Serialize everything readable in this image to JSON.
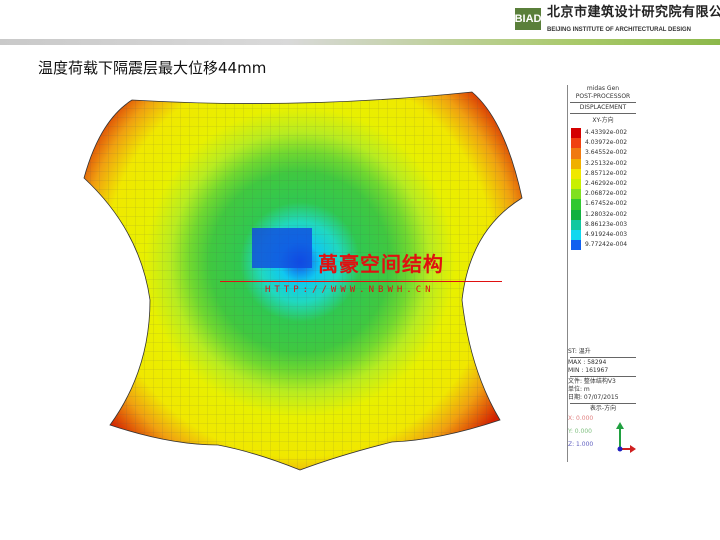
{
  "header": {
    "logo": "BIAD",
    "org_cn": "北京市建筑设计研究院有限公司",
    "org_en": "BEIJING INSTITUTE OF ARCHITECTURAL DESIGN"
  },
  "slide": {
    "title": "温度荷载下隔震层最大位移44mm"
  },
  "legend": {
    "app": "midas Gen",
    "sub": "POST-PROCESSOR",
    "type": "DISPLACEMENT",
    "component": "XY-方向",
    "values": [
      "4.43392e-002",
      "4.03972e-002",
      "3.64552e-002",
      "3.25132e-002",
      "2.85712e-002",
      "2.46292e-002",
      "2.06872e-002",
      "1.67452e-002",
      "1.28032e-002",
      "8.86123e-003",
      "4.91924e-003",
      "9.77242e-004"
    ],
    "colors": [
      "#d40000",
      "#f04010",
      "#f07a10",
      "#f0b000",
      "#f0e800",
      "#c8f000",
      "#80e020",
      "#30c830",
      "#10b040",
      "#10c8a0",
      "#10d8f0",
      "#1060f0"
    ],
    "st": "ST: 温升",
    "max": "MAX : 58294",
    "min": "MIN : 161967",
    "file": "文件: 整体结构V3",
    "unit": "单位: m",
    "date": "日期: 07/07/2015",
    "view": "表示-方向",
    "x": "X: 0.000",
    "y": "Y: 0.000",
    "z": "Z: 1.000"
  },
  "watermark": {
    "name": "萬豪空间结构",
    "url": "HTTP://WWW.NBWH.CN"
  }
}
